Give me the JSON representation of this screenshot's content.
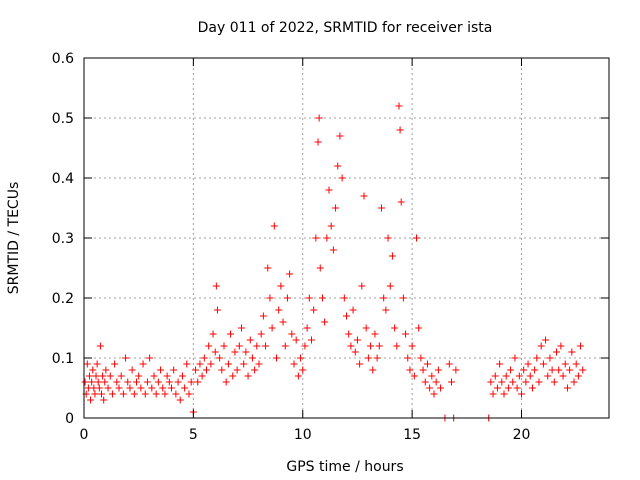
{
  "chart_data": {
    "type": "scatter",
    "title": "Day 011 of 2022, SRMTID for receiver ista",
    "xlabel": "GPS time / hours",
    "ylabel": "SRMTID / TECUs",
    "xlim": [
      0,
      24
    ],
    "ylim": [
      0,
      0.6
    ],
    "xticks": [
      0,
      5,
      10,
      15,
      20
    ],
    "yticks": [
      0,
      0.1,
      0.2,
      0.3,
      0.4,
      0.5,
      0.6
    ],
    "xtick_labels": [
      "0",
      "5",
      "10",
      "15",
      "20"
    ],
    "ytick_labels": [
      "0",
      "0.1",
      "0.2",
      "0.3",
      "0.4",
      "0.5",
      "0.6"
    ],
    "grid": true,
    "marker": "+",
    "color": "#ff0000",
    "series": [
      {
        "name": "SRMTID",
        "points": [
          [
            0.05,
            0.06
          ],
          [
            0.1,
            0.04
          ],
          [
            0.15,
            0.09
          ],
          [
            0.2,
            0.05
          ],
          [
            0.25,
            0.07
          ],
          [
            0.3,
            0.03
          ],
          [
            0.35,
            0.06
          ],
          [
            0.4,
            0.08
          ],
          [
            0.45,
            0.05
          ],
          [
            0.5,
            0.04
          ],
          [
            0.55,
            0.07
          ],
          [
            0.6,
            0.09
          ],
          [
            0.65,
            0.06
          ],
          [
            0.7,
            0.05
          ],
          [
            0.75,
            0.12
          ],
          [
            0.8,
            0.04
          ],
          [
            0.85,
            0.07
          ],
          [
            0.9,
            0.03
          ],
          [
            0.95,
            0.06
          ],
          [
            1.0,
            0.08
          ],
          [
            1.1,
            0.05
          ],
          [
            1.2,
            0.07
          ],
          [
            1.3,
            0.04
          ],
          [
            1.4,
            0.09
          ],
          [
            1.5,
            0.06
          ],
          [
            1.6,
            0.05
          ],
          [
            1.7,
            0.07
          ],
          [
            1.8,
            0.04
          ],
          [
            1.9,
            0.1
          ],
          [
            2.0,
            0.06
          ],
          [
            2.1,
            0.05
          ],
          [
            2.2,
            0.08
          ],
          [
            2.3,
            0.04
          ],
          [
            2.4,
            0.06
          ],
          [
            2.5,
            0.07
          ],
          [
            2.6,
            0.05
          ],
          [
            2.7,
            0.09
          ],
          [
            2.8,
            0.04
          ],
          [
            2.9,
            0.06
          ],
          [
            3.0,
            0.1
          ],
          [
            3.1,
            0.05
          ],
          [
            3.2,
            0.07
          ],
          [
            3.3,
            0.04
          ],
          [
            3.4,
            0.06
          ],
          [
            3.5,
            0.08
          ],
          [
            3.6,
            0.05
          ],
          [
            3.7,
            0.04
          ],
          [
            3.8,
            0.07
          ],
          [
            3.9,
            0.06
          ],
          [
            4.0,
            0.05
          ],
          [
            4.1,
            0.08
          ],
          [
            4.2,
            0.04
          ],
          [
            4.3,
            0.06
          ],
          [
            4.4,
            0.03
          ],
          [
            4.5,
            0.07
          ],
          [
            4.6,
            0.05
          ],
          [
            4.7,
            0.09
          ],
          [
            4.8,
            0.04
          ],
          [
            4.9,
            0.06
          ],
          [
            5.0,
            0.01
          ],
          [
            5.1,
            0.08
          ],
          [
            5.2,
            0.06
          ],
          [
            5.3,
            0.09
          ],
          [
            5.4,
            0.07
          ],
          [
            5.5,
            0.1
          ],
          [
            5.6,
            0.08
          ],
          [
            5.7,
            0.12
          ],
          [
            5.8,
            0.09
          ],
          [
            5.9,
            0.14
          ],
          [
            6.0,
            0.11
          ],
          [
            6.05,
            0.22
          ],
          [
            6.1,
            0.18
          ],
          [
            6.2,
            0.1
          ],
          [
            6.3,
            0.08
          ],
          [
            6.4,
            0.12
          ],
          [
            6.5,
            0.06
          ],
          [
            6.6,
            0.09
          ],
          [
            6.7,
            0.14
          ],
          [
            6.8,
            0.07
          ],
          [
            6.9,
            0.11
          ],
          [
            7.0,
            0.08
          ],
          [
            7.1,
            0.12
          ],
          [
            7.2,
            0.15
          ],
          [
            7.3,
            0.09
          ],
          [
            7.4,
            0.11
          ],
          [
            7.5,
            0.07
          ],
          [
            7.6,
            0.13
          ],
          [
            7.7,
            0.1
          ],
          [
            7.8,
            0.08
          ],
          [
            7.9,
            0.12
          ],
          [
            8.0,
            0.09
          ],
          [
            8.1,
            0.14
          ],
          [
            8.2,
            0.17
          ],
          [
            8.3,
            0.12
          ],
          [
            8.4,
            0.25
          ],
          [
            8.5,
            0.2
          ],
          [
            8.6,
            0.15
          ],
          [
            8.7,
            0.32
          ],
          [
            8.8,
            0.1
          ],
          [
            8.9,
            0.18
          ],
          [
            9.0,
            0.22
          ],
          [
            9.1,
            0.16
          ],
          [
            9.2,
            0.12
          ],
          [
            9.3,
            0.2
          ],
          [
            9.4,
            0.24
          ],
          [
            9.5,
            0.14
          ],
          [
            9.6,
            0.09
          ],
          [
            9.7,
            0.13
          ],
          [
            9.8,
            0.07
          ],
          [
            9.9,
            0.1
          ],
          [
            10.0,
            0.08
          ],
          [
            10.1,
            0.12
          ],
          [
            10.2,
            0.15
          ],
          [
            10.3,
            0.2
          ],
          [
            10.4,
            0.13
          ],
          [
            10.5,
            0.18
          ],
          [
            10.6,
            0.3
          ],
          [
            10.7,
            0.46
          ],
          [
            10.75,
            0.5
          ],
          [
            10.8,
            0.25
          ],
          [
            10.9,
            0.2
          ],
          [
            11.0,
            0.16
          ],
          [
            11.1,
            0.3
          ],
          [
            11.2,
            0.38
          ],
          [
            11.3,
            0.32
          ],
          [
            11.4,
            0.28
          ],
          [
            11.5,
            0.35
          ],
          [
            11.6,
            0.42
          ],
          [
            11.7,
            0.47
          ],
          [
            11.8,
            0.4
          ],
          [
            11.9,
            0.2
          ],
          [
            12.0,
            0.17
          ],
          [
            12.1,
            0.14
          ],
          [
            12.2,
            0.12
          ],
          [
            12.3,
            0.18
          ],
          [
            12.4,
            0.11
          ],
          [
            12.5,
            0.13
          ],
          [
            12.6,
            0.09
          ],
          [
            12.7,
            0.22
          ],
          [
            12.8,
            0.37
          ],
          [
            12.9,
            0.15
          ],
          [
            13.0,
            0.1
          ],
          [
            13.1,
            0.12
          ],
          [
            13.2,
            0.08
          ],
          [
            13.3,
            0.14
          ],
          [
            13.4,
            0.1
          ],
          [
            13.5,
            0.12
          ],
          [
            13.6,
            0.35
          ],
          [
            13.7,
            0.2
          ],
          [
            13.8,
            0.18
          ],
          [
            13.9,
            0.3
          ],
          [
            14.0,
            0.22
          ],
          [
            14.1,
            0.27
          ],
          [
            14.2,
            0.15
          ],
          [
            14.3,
            0.12
          ],
          [
            14.4,
            0.52
          ],
          [
            14.45,
            0.48
          ],
          [
            14.5,
            0.36
          ],
          [
            14.6,
            0.2
          ],
          [
            14.7,
            0.14
          ],
          [
            14.8,
            0.1
          ],
          [
            14.9,
            0.08
          ],
          [
            15.0,
            0.12
          ],
          [
            15.1,
            0.07
          ],
          [
            15.2,
            0.3
          ],
          [
            15.3,
            0.15
          ],
          [
            15.4,
            0.1
          ],
          [
            15.5,
            0.08
          ],
          [
            15.6,
            0.06
          ],
          [
            15.7,
            0.09
          ],
          [
            15.8,
            0.05
          ],
          [
            15.9,
            0.07
          ],
          [
            16.0,
            0.04
          ],
          [
            16.1,
            0.06
          ],
          [
            16.2,
            0.08
          ],
          [
            16.3,
            0.05
          ],
          [
            16.5,
            0.0
          ],
          [
            16.7,
            0.09
          ],
          [
            16.8,
            0.06
          ],
          [
            16.9,
            0.0
          ],
          [
            17.0,
            0.08
          ],
          [
            18.5,
            0.0
          ],
          [
            18.6,
            0.06
          ],
          [
            18.7,
            0.04
          ],
          [
            18.8,
            0.07
          ],
          [
            18.9,
            0.05
          ],
          [
            19.0,
            0.09
          ],
          [
            19.1,
            0.06
          ],
          [
            19.2,
            0.04
          ],
          [
            19.3,
            0.07
          ],
          [
            19.4,
            0.05
          ],
          [
            19.5,
            0.08
          ],
          [
            19.6,
            0.06
          ],
          [
            19.7,
            0.1
          ],
          [
            19.8,
            0.05
          ],
          [
            19.9,
            0.07
          ],
          [
            20.0,
            0.04
          ],
          [
            20.1,
            0.08
          ],
          [
            20.2,
            0.06
          ],
          [
            20.3,
            0.09
          ],
          [
            20.4,
            0.07
          ],
          [
            20.5,
            0.05
          ],
          [
            20.6,
            0.08
          ],
          [
            20.7,
            0.1
          ],
          [
            20.8,
            0.06
          ],
          [
            20.9,
            0.12
          ],
          [
            21.0,
            0.09
          ],
          [
            21.1,
            0.13
          ],
          [
            21.2,
            0.07
          ],
          [
            21.3,
            0.1
          ],
          [
            21.4,
            0.08
          ],
          [
            21.5,
            0.06
          ],
          [
            21.6,
            0.11
          ],
          [
            21.7,
            0.08
          ],
          [
            21.8,
            0.12
          ],
          [
            21.9,
            0.07
          ],
          [
            22.0,
            0.09
          ],
          [
            22.1,
            0.05
          ],
          [
            22.2,
            0.08
          ],
          [
            22.3,
            0.11
          ],
          [
            22.4,
            0.06
          ],
          [
            22.5,
            0.09
          ],
          [
            22.6,
            0.07
          ],
          [
            22.7,
            0.12
          ],
          [
            22.8,
            0.08
          ]
        ]
      }
    ]
  }
}
